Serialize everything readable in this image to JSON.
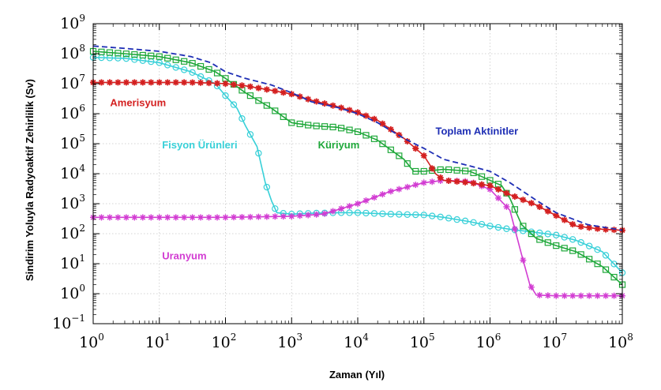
{
  "chart_data": {
    "type": "line",
    "xlabel": "Zaman (Yıl)",
    "ylabel": "Sindirim Yoluyla Radyoaktif Zehirlilik (Sv)",
    "x_scale": "log",
    "y_scale": "log",
    "xlim": [
      1,
      100000000
    ],
    "ylim": [
      0.1,
      1000000000
    ],
    "grid": true,
    "x_ticks": [
      {
        "base": "10",
        "exp": "0",
        "value": 1
      },
      {
        "base": "10",
        "exp": "1",
        "value": 10
      },
      {
        "base": "10",
        "exp": "2",
        "value": 100
      },
      {
        "base": "10",
        "exp": "3",
        "value": 1000
      },
      {
        "base": "10",
        "exp": "4",
        "value": 10000
      },
      {
        "base": "10",
        "exp": "5",
        "value": 100000
      },
      {
        "base": "10",
        "exp": "6",
        "value": 1000000
      },
      {
        "base": "10",
        "exp": "7",
        "value": 10000000
      },
      {
        "base": "10",
        "exp": "8",
        "value": 100000000
      }
    ],
    "y_ticks": [
      {
        "base": "10",
        "exp": "−1",
        "value": 0.1
      },
      {
        "base": "10",
        "exp": "0",
        "value": 1
      },
      {
        "base": "10",
        "exp": "1",
        "value": 10
      },
      {
        "base": "10",
        "exp": "2",
        "value": 100
      },
      {
        "base": "10",
        "exp": "3",
        "value": 1000
      },
      {
        "base": "10",
        "exp": "4",
        "value": 10000
      },
      {
        "base": "10",
        "exp": "5",
        "value": 100000
      },
      {
        "base": "10",
        "exp": "6",
        "value": 1000000
      },
      {
        "base": "10",
        "exp": "7",
        "value": 10000000
      },
      {
        "base": "10",
        "exp": "8",
        "value": 100000000
      },
      {
        "base": "10",
        "exp": "9",
        "value": 1000000000
      }
    ],
    "series": [
      {
        "name": "Toplam Aktinitler",
        "color": "#1f2fb5",
        "line_style": "dashed",
        "marker": "none",
        "label_anchor": [
          150000,
          200000
        ],
        "points": [
          [
            1,
            180000000
          ],
          [
            3,
            150000000
          ],
          [
            10,
            120000000
          ],
          [
            30,
            80000000
          ],
          [
            60,
            50000000
          ],
          [
            100,
            25000000
          ],
          [
            200,
            15000000
          ],
          [
            500,
            9000000
          ],
          [
            1000,
            5000000
          ],
          [
            2000,
            2500000
          ],
          [
            5000,
            1600000
          ],
          [
            10000,
            1000000
          ],
          [
            20000,
            500000
          ],
          [
            50000,
            150000
          ],
          [
            100000,
            70000
          ],
          [
            200000,
            30000
          ],
          [
            500000,
            18000
          ],
          [
            1000000,
            12000
          ],
          [
            2000000,
            5000
          ],
          [
            5000000,
            1300
          ],
          [
            10000000,
            500
          ],
          [
            30000000,
            200
          ],
          [
            100000000,
            130
          ]
        ]
      },
      {
        "name": "Amerisyum",
        "color": "#d42020",
        "line_style": "solid",
        "marker": "star",
        "label_anchor": [
          1.8,
          1800000
        ],
        "points": [
          [
            1,
            11000000
          ],
          [
            3,
            11000000
          ],
          [
            10,
            11000000
          ],
          [
            30,
            11000000
          ],
          [
            60,
            10500000
          ],
          [
            100,
            10000000
          ],
          [
            200,
            8500000
          ],
          [
            500,
            6000000
          ],
          [
            1000,
            4500000
          ],
          [
            2000,
            2800000
          ],
          [
            5000,
            1700000
          ],
          [
            10000,
            1100000
          ],
          [
            20000,
            600000
          ],
          [
            50000,
            150000
          ],
          [
            100000,
            40000
          ],
          [
            150000,
            10000
          ],
          [
            200000,
            6000
          ],
          [
            500000,
            5000
          ],
          [
            1000000,
            4000
          ],
          [
            2000000,
            2000
          ],
          [
            5000000,
            900
          ],
          [
            10000000,
            400
          ],
          [
            20000000,
            180
          ],
          [
            50000000,
            140
          ],
          [
            100000000,
            130
          ]
        ]
      },
      {
        "name": "Küriyum",
        "color": "#1fa83a",
        "line_style": "solid",
        "marker": "square",
        "label_anchor": [
          2500,
          70000
        ],
        "points": [
          [
            1,
            120000000
          ],
          [
            3,
            100000000
          ],
          [
            10,
            80000000
          ],
          [
            30,
            50000000
          ],
          [
            70,
            25000000
          ],
          [
            100,
            15000000
          ],
          [
            200,
            5000000
          ],
          [
            500,
            1500000
          ],
          [
            1000,
            500000
          ],
          [
            2000,
            400000
          ],
          [
            5000,
            350000
          ],
          [
            10000,
            250000
          ],
          [
            20000,
            130000
          ],
          [
            50000,
            30000
          ],
          [
            70000,
            12000
          ],
          [
            100000,
            12000
          ],
          [
            200000,
            14000
          ],
          [
            500000,
            12000
          ],
          [
            1000000,
            6000
          ],
          [
            1500000,
            4000
          ],
          [
            2000000,
            1500
          ],
          [
            3000000,
            200
          ],
          [
            5000000,
            70
          ],
          [
            10000000,
            40
          ],
          [
            20000000,
            25
          ],
          [
            50000000,
            8
          ],
          [
            100000000,
            2
          ]
        ]
      },
      {
        "name": "Fisyon Ürünleri",
        "color": "#38d0d8",
        "line_style": "solid",
        "marker": "circle",
        "label_anchor": [
          11,
          70000
        ],
        "points": [
          [
            1,
            75000000
          ],
          [
            3,
            70000000
          ],
          [
            10,
            50000000
          ],
          [
            30,
            25000000
          ],
          [
            70,
            10000000
          ],
          [
            100,
            4000000
          ],
          [
            150,
            1500000
          ],
          [
            200,
            400000
          ],
          [
            300,
            80000
          ],
          [
            400,
            5000
          ],
          [
            500,
            1200
          ],
          [
            600,
            500
          ],
          [
            1000,
            450
          ],
          [
            2000,
            480
          ],
          [
            5000,
            500
          ],
          [
            10000,
            500
          ],
          [
            30000,
            450
          ],
          [
            100000,
            420
          ],
          [
            200000,
            350
          ],
          [
            500000,
            250
          ],
          [
            1000000,
            180
          ],
          [
            2000000,
            140
          ],
          [
            5000000,
            110
          ],
          [
            10000000,
            90
          ],
          [
            20000000,
            60
          ],
          [
            50000000,
            25
          ],
          [
            100000000,
            5
          ]
        ]
      },
      {
        "name": "Uranyum",
        "color": "#d23cd2",
        "line_style": "solid",
        "marker": "asterisk",
        "label_anchor": [
          11,
          14
        ],
        "points": [
          [
            1,
            350
          ],
          [
            10,
            350
          ],
          [
            100,
            350
          ],
          [
            1000,
            380
          ],
          [
            3000,
            450
          ],
          [
            10000,
            1000
          ],
          [
            30000,
            2500
          ],
          [
            100000,
            5000
          ],
          [
            200000,
            6000
          ],
          [
            500000,
            5500
          ],
          [
            1000000,
            3000
          ],
          [
            2000000,
            600
          ],
          [
            3000000,
            20
          ],
          [
            4000000,
            2
          ],
          [
            5000000,
            0.9
          ],
          [
            10000000,
            0.85
          ],
          [
            30000000,
            0.85
          ],
          [
            100000000,
            0.85
          ]
        ]
      }
    ]
  }
}
